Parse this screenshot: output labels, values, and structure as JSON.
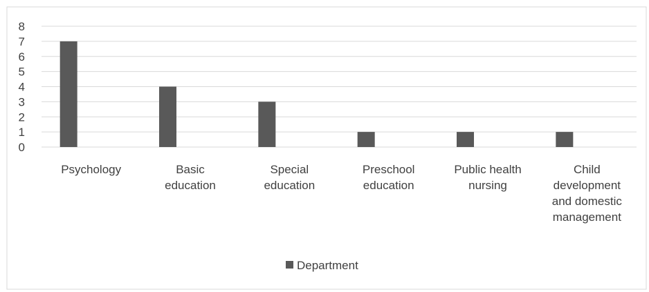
{
  "chart_data": {
    "type": "bar",
    "categories": [
      [
        "Psychology"
      ],
      [
        "Basic",
        "education"
      ],
      [
        "Special",
        "education"
      ],
      [
        "Preschool",
        "education"
      ],
      [
        "Public health",
        "nursing"
      ],
      [
        "Child",
        "development",
        "and domestic",
        "management"
      ]
    ],
    "series": [
      {
        "name": "Department",
        "values": [
          7,
          4,
          3,
          1,
          1,
          1
        ]
      }
    ],
    "yticks": [
      "0",
      "1",
      "2",
      "3",
      "4",
      "5",
      "6",
      "7",
      "8"
    ],
    "ylim": [
      0,
      8
    ],
    "grid": true,
    "legend_position": "bottom",
    "colors": {
      "bar": "#595959",
      "grid": "#d9d9d9",
      "border": "#d9d9d9",
      "text": "#404040"
    }
  }
}
